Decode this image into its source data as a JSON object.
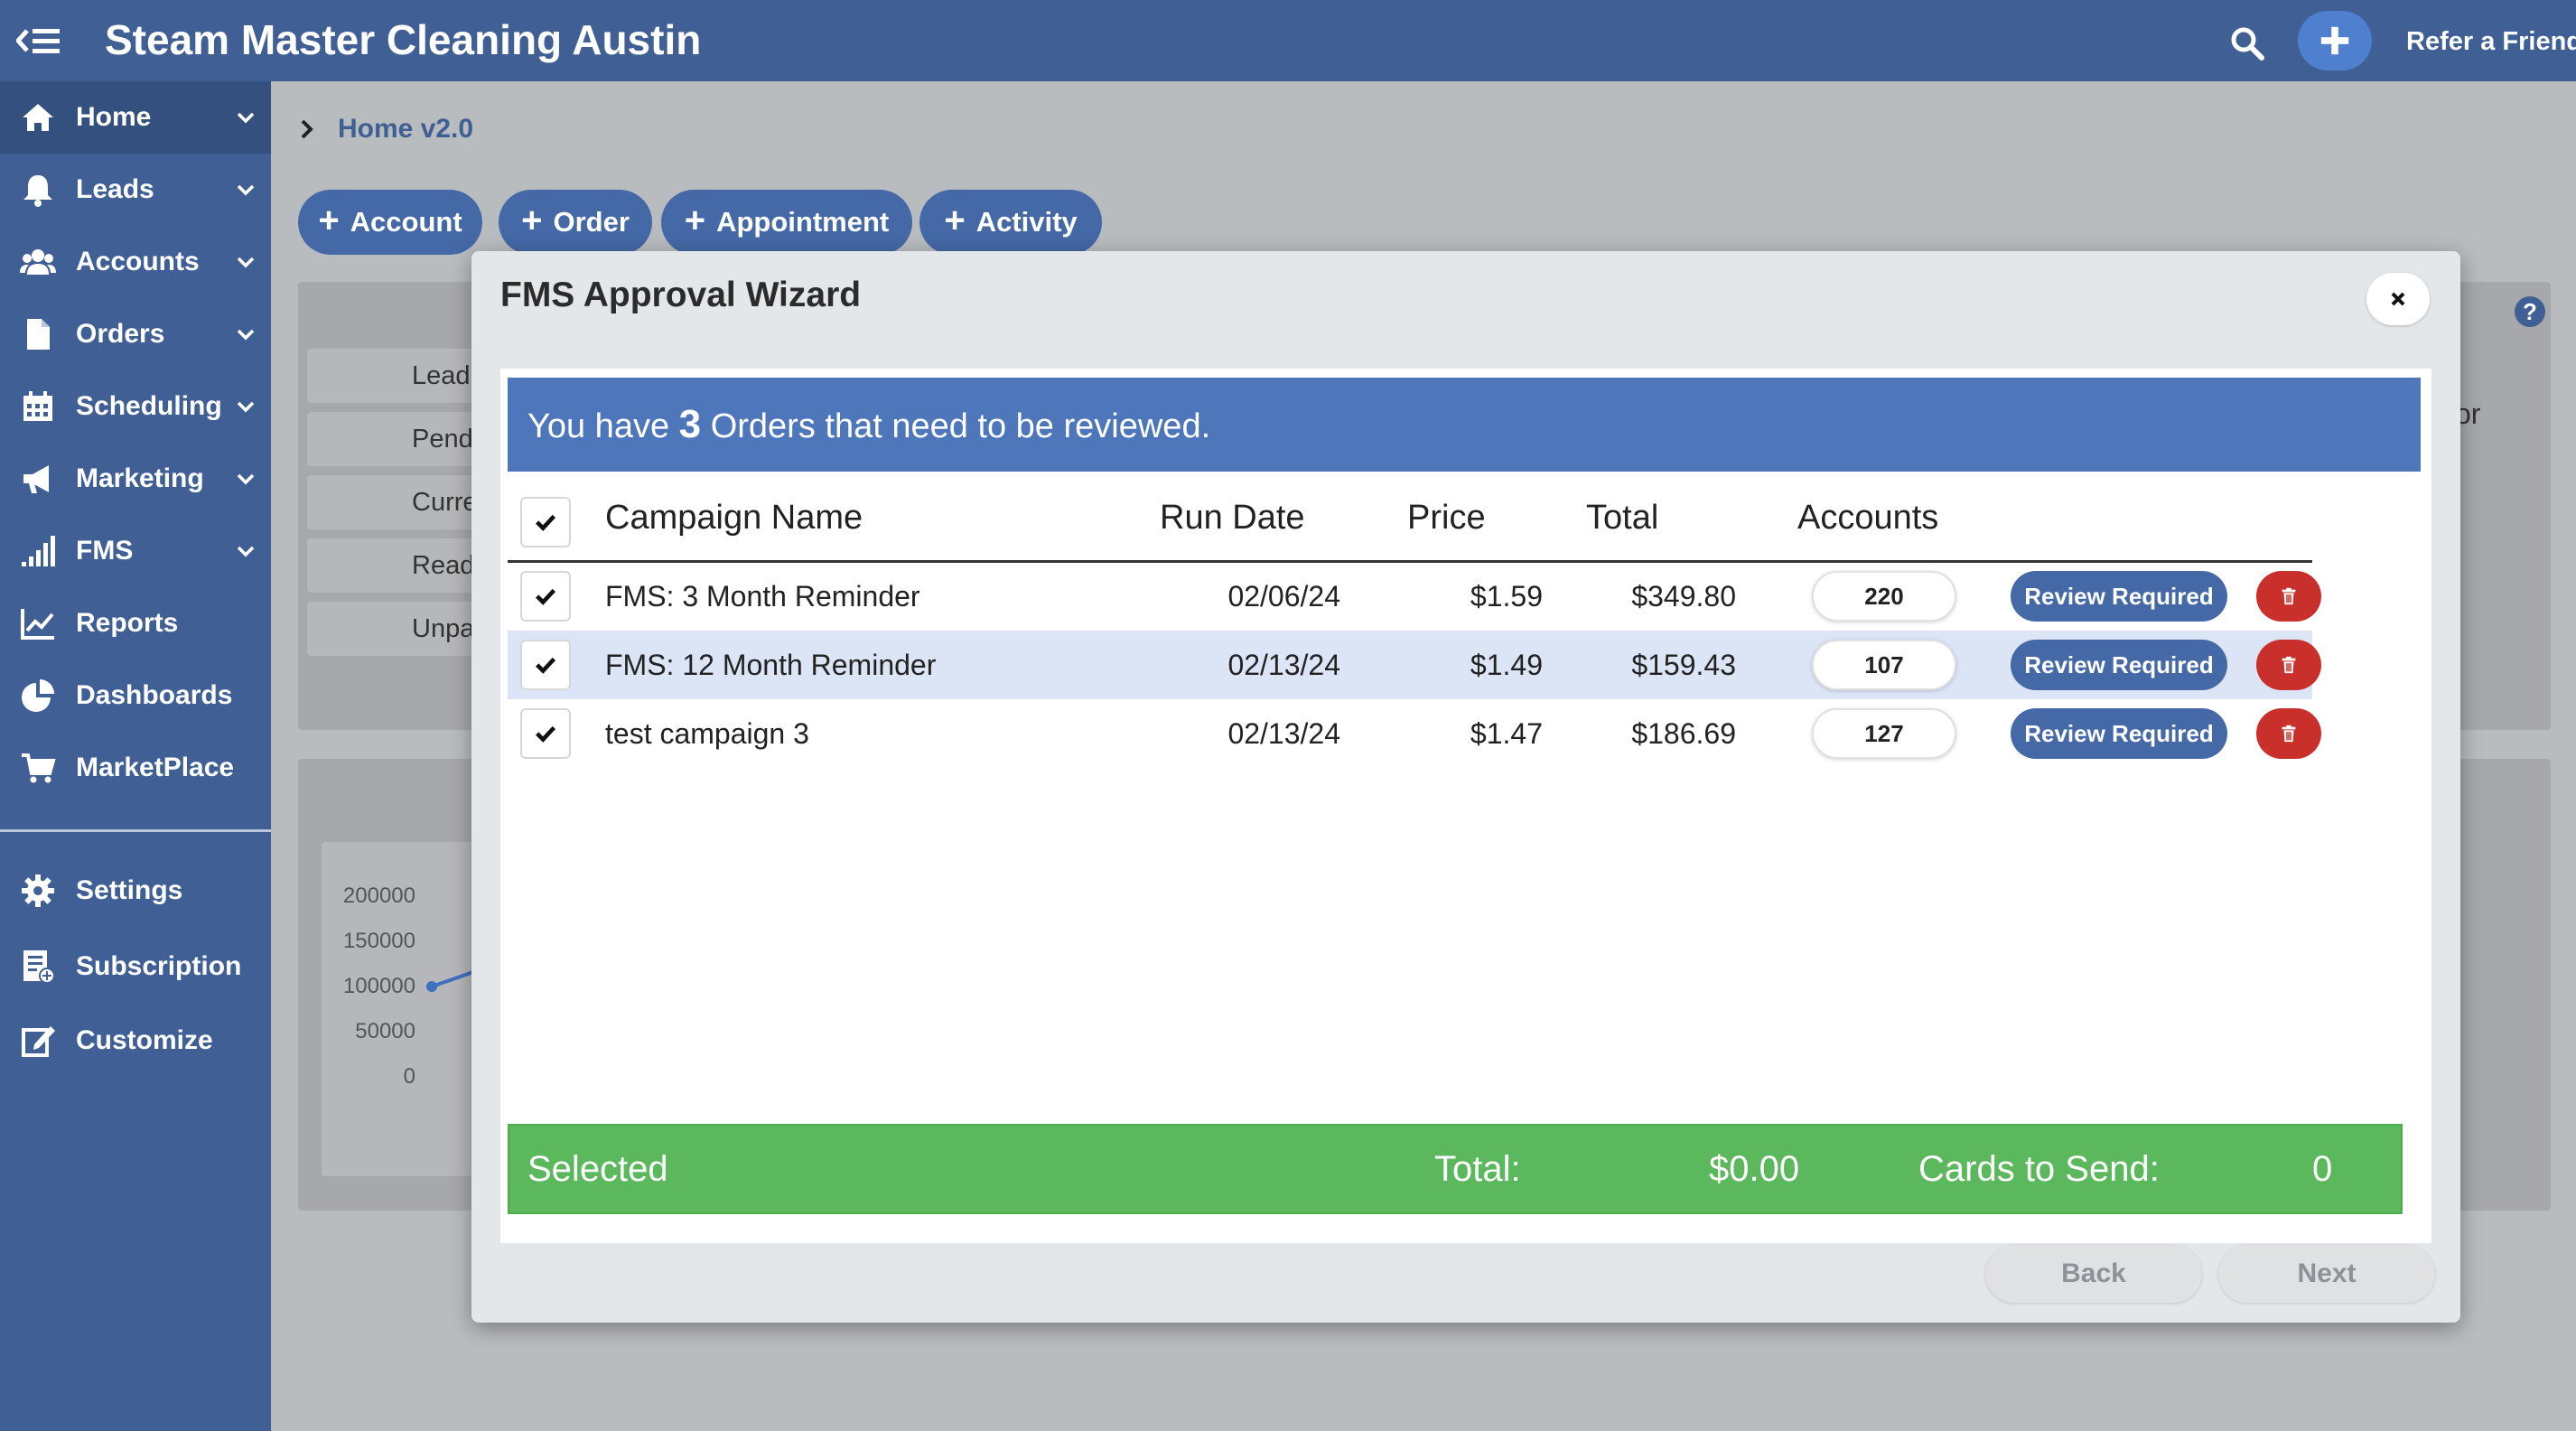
{
  "app": {
    "title": "Steam Master Cleaning Austin",
    "refer_label": "Refer a Friend",
    "icons": {
      "menu": "menu-collapse-icon",
      "search": "search-icon",
      "add": "plus-icon"
    }
  },
  "colors": {
    "brand": "#3f5f95",
    "banner": "#4d76bb",
    "success": "#5cb85c",
    "danger": "#c9302c"
  },
  "sidebar": {
    "items": [
      {
        "label": "Home",
        "icon": "home-icon",
        "active": true,
        "has_chevron": true
      },
      {
        "label": "Leads",
        "icon": "bell-icon",
        "has_chevron": true
      },
      {
        "label": "Accounts",
        "icon": "users-icon",
        "has_chevron": true
      },
      {
        "label": "Orders",
        "icon": "file-icon",
        "has_chevron": true
      },
      {
        "label": "Scheduling",
        "icon": "calendar-icon",
        "has_chevron": true
      },
      {
        "label": "Marketing",
        "icon": "megaphone-icon",
        "has_chevron": true
      },
      {
        "label": "FMS",
        "icon": "signal-icon",
        "has_chevron": true
      },
      {
        "label": "Reports",
        "icon": "line-chart-icon",
        "has_chevron": false
      },
      {
        "label": "Dashboards",
        "icon": "pie-chart-icon",
        "has_chevron": false
      },
      {
        "label": "MarketPlace",
        "icon": "cart-icon",
        "has_chevron": false
      }
    ],
    "bottom_items": [
      {
        "label": "Settings",
        "icon": "gear-icon"
      },
      {
        "label": "Subscription",
        "icon": "subscription-icon"
      },
      {
        "label": "Customize",
        "icon": "edit-icon"
      }
    ]
  },
  "breadcrumb": {
    "label": "Home v2.0"
  },
  "quick_actions": [
    {
      "label": "Account"
    },
    {
      "label": "Order"
    },
    {
      "label": "Appointment"
    },
    {
      "label": "Activity"
    }
  ],
  "background": {
    "pills": [
      "Lead",
      "Pend",
      "Curre",
      "Read",
      "Unpa"
    ],
    "chart_ticks": [
      "200000",
      "150000",
      "100000",
      "50000",
      "0"
    ],
    "partial_text": "or"
  },
  "modal": {
    "title": "FMS Approval Wizard",
    "banner": {
      "prefix": "You have",
      "count": "3",
      "suffix": "Orders that need to be reviewed."
    },
    "columns": {
      "campaign": "Campaign Name",
      "run_date": "Run Date",
      "price": "Price",
      "total": "Total",
      "accounts": "Accounts"
    },
    "rows": [
      {
        "campaign": "FMS: 3 Month Reminder",
        "run_date": "02/06/24",
        "price": "$1.59",
        "total": "$349.80",
        "accounts": "220",
        "status": "Review Required",
        "checked": true
      },
      {
        "campaign": "FMS: 12 Month Reminder",
        "run_date": "02/13/24",
        "price": "$1.49",
        "total": "$159.43",
        "accounts": "107",
        "status": "Review Required",
        "checked": true
      },
      {
        "campaign": "test campaign 3",
        "run_date": "02/13/24",
        "price": "$1.47",
        "total": "$186.69",
        "accounts": "127",
        "status": "Review Required",
        "checked": true
      }
    ],
    "summary": {
      "selected_label": "Selected",
      "total_label": "Total:",
      "total_value": "$0.00",
      "cards_label": "Cards to Send:",
      "cards_value": "0"
    },
    "buttons": {
      "back": "Back",
      "next": "Next"
    }
  }
}
